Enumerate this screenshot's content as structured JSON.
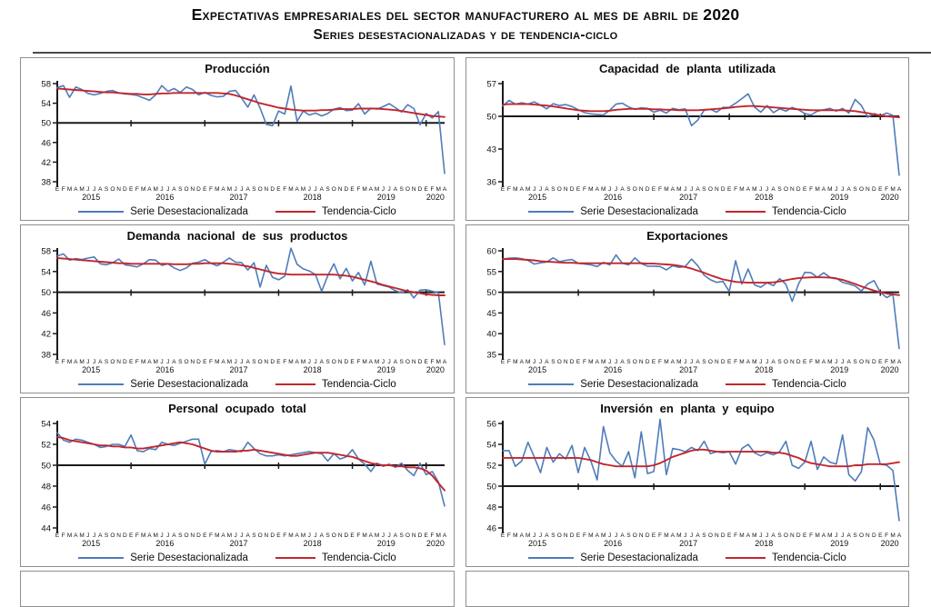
{
  "header": {
    "title_line1": "Expectativas empresariales del sector manufacturero al mes de abril de 2020",
    "title_line2": "Series desestacionalizadas y de tendencia-ciclo"
  },
  "legend": {
    "series_label": "Serie Desestacionalizada",
    "trend_label": "Tendencia-Ciclo",
    "series_color": "#4f7cba",
    "trend_color": "#c2262c",
    "axis_color": "#1a1a1a"
  },
  "x_axis": {
    "years": [
      {
        "label": "2015",
        "months": "EFMAMJJASOND"
      },
      {
        "label": "2016",
        "months": "EFMAMJJASOND"
      },
      {
        "label": "2017",
        "months": "EFMAMJJASOND"
      },
      {
        "label": "2018",
        "months": "EFMAMJJASOND"
      },
      {
        "label": "2019",
        "months": "EFMAMJJASOND"
      },
      {
        "label": "2020",
        "months": "EFMA"
      }
    ]
  },
  "chart_data": [
    {
      "type": "line",
      "title": "Producción",
      "ylim": [
        38,
        58
      ],
      "yticks": [
        38,
        42,
        46,
        50,
        54,
        58
      ],
      "baseline": 50,
      "series": [
        {
          "name": "Serie Desestacionalizada",
          "values": [
            57.2,
            57.6,
            55.2,
            57.3,
            56.8,
            56.0,
            55.7,
            56.0,
            56.4,
            56.6,
            56.1,
            55.9,
            55.8,
            55.6,
            55.1,
            54.6,
            55.7,
            57.6,
            56.4,
            57.0,
            56.2,
            57.3,
            56.8,
            55.7,
            56.2,
            55.6,
            55.3,
            55.4,
            56.4,
            56.6,
            55.0,
            53.2,
            55.7,
            53.0,
            49.7,
            49.4,
            52.4,
            51.8,
            57.5,
            50.3,
            52.4,
            51.6,
            52.0,
            51.4,
            51.9,
            52.8,
            53.1,
            52.5,
            52.6,
            53.9,
            51.8,
            53.0,
            52.8,
            53.3,
            53.9,
            53.1,
            52.2,
            53.7,
            52.9,
            49.6,
            51.9,
            51.0,
            52.3,
            39.7
          ]
        },
        {
          "name": "Tendencia-Ciclo",
          "values": [
            57.0,
            56.9,
            56.8,
            56.7,
            56.6,
            56.5,
            56.4,
            56.3,
            56.2,
            56.2,
            56.1,
            56.0,
            55.9,
            55.9,
            55.8,
            55.8,
            55.9,
            56.0,
            56.0,
            56.1,
            56.1,
            56.1,
            56.1,
            56.1,
            56.1,
            56.1,
            56.1,
            56.0,
            55.9,
            55.6,
            55.2,
            54.8,
            54.4,
            54.0,
            53.7,
            53.4,
            53.1,
            52.9,
            52.7,
            52.6,
            52.5,
            52.5,
            52.5,
            52.6,
            52.6,
            52.7,
            52.8,
            52.8,
            52.8,
            52.9,
            52.9,
            52.9,
            52.9,
            52.8,
            52.7,
            52.6,
            52.4,
            52.2,
            52.0,
            51.8,
            51.6,
            51.4,
            51.3,
            51.2
          ]
        }
      ]
    },
    {
      "type": "line",
      "title": "Capacidad de planta utilizada",
      "ylim": [
        36,
        57
      ],
      "yticks": [
        36,
        43,
        50,
        57
      ],
      "baseline": 50,
      "series": [
        {
          "name": "Serie Desestacionalizada",
          "values": [
            52.2,
            53.4,
            52.6,
            52.9,
            52.6,
            53.1,
            52.4,
            51.6,
            52.7,
            52.3,
            52.5,
            52.1,
            51.4,
            50.8,
            50.5,
            50.4,
            50.3,
            51.3,
            52.6,
            52.8,
            52.0,
            51.5,
            51.8,
            51.7,
            50.9,
            51.3,
            50.7,
            51.7,
            51.4,
            51.6,
            48.0,
            49.2,
            51.3,
            51.5,
            50.9,
            51.9,
            51.9,
            52.8,
            53.8,
            54.8,
            52.0,
            50.9,
            52.3,
            50.8,
            51.6,
            51.1,
            51.9,
            51.4,
            50.6,
            50.3,
            51.1,
            51.4,
            51.7,
            51.1,
            51.7,
            50.7,
            53.6,
            52.3,
            49.8,
            50.6,
            50.1,
            50.7,
            50.2,
            37.4
          ]
        },
        {
          "name": "Tendencia-Ciclo",
          "values": [
            52.5,
            52.6,
            52.6,
            52.6,
            52.6,
            52.5,
            52.4,
            52.3,
            52.1,
            51.9,
            51.7,
            51.5,
            51.3,
            51.2,
            51.1,
            51.1,
            51.1,
            51.2,
            51.4,
            51.5,
            51.6,
            51.6,
            51.6,
            51.6,
            51.5,
            51.5,
            51.4,
            51.4,
            51.3,
            51.3,
            51.3,
            51.3,
            51.4,
            51.5,
            51.6,
            51.7,
            51.8,
            52.0,
            52.1,
            52.2,
            52.2,
            52.1,
            52.0,
            51.9,
            51.8,
            51.7,
            51.6,
            51.5,
            51.4,
            51.3,
            51.3,
            51.3,
            51.3,
            51.3,
            51.3,
            51.2,
            51.1,
            50.9,
            50.7,
            50.4,
            50.2,
            50.0,
            49.9,
            49.8
          ]
        }
      ]
    },
    {
      "type": "line",
      "title": "Demanda nacional de sus productos",
      "ylim": [
        38,
        58
      ],
      "yticks": [
        38,
        42,
        46,
        50,
        54,
        58
      ],
      "baseline": 50,
      "series": [
        {
          "name": "Serie Desestacionalizada",
          "values": [
            57.0,
            57.4,
            56.2,
            56.5,
            56.3,
            56.6,
            56.8,
            55.5,
            55.3,
            55.7,
            56.4,
            55.3,
            55.1,
            54.9,
            55.5,
            56.3,
            56.2,
            55.2,
            55.5,
            54.7,
            54.2,
            54.7,
            55.6,
            55.8,
            56.3,
            55.6,
            55.1,
            55.8,
            56.6,
            55.8,
            55.7,
            54.3,
            55.7,
            51.0,
            55.2,
            52.9,
            52.4,
            53.1,
            58.5,
            55.4,
            54.5,
            54.1,
            53.4,
            50.2,
            53.2,
            55.5,
            52.6,
            54.6,
            52.2,
            53.8,
            51.4,
            56.0,
            51.6,
            51.3,
            51.0,
            50.3,
            49.9,
            50.5,
            48.9,
            50.4,
            50.5,
            50.2,
            49.9,
            39.9
          ]
        },
        {
          "name": "Tendencia-Ciclo",
          "values": [
            56.6,
            56.5,
            56.4,
            56.3,
            56.2,
            56.1,
            56.0,
            55.9,
            55.8,
            55.7,
            55.6,
            55.6,
            55.5,
            55.5,
            55.5,
            55.5,
            55.5,
            55.5,
            55.5,
            55.4,
            55.4,
            55.4,
            55.5,
            55.5,
            55.6,
            55.6,
            55.6,
            55.6,
            55.5,
            55.4,
            55.2,
            55.0,
            54.7,
            54.4,
            54.1,
            53.8,
            53.6,
            53.5,
            53.4,
            53.4,
            53.4,
            53.4,
            53.4,
            53.4,
            53.4,
            53.4,
            53.3,
            53.2,
            53.0,
            52.7,
            52.4,
            52.1,
            51.8,
            51.4,
            51.1,
            50.8,
            50.5,
            50.2,
            50.0,
            49.8,
            49.6,
            49.5,
            49.4,
            49.4
          ]
        }
      ]
    },
    {
      "type": "line",
      "title": "Exportaciones",
      "ylim": [
        35,
        60
      ],
      "yticks": [
        35,
        40,
        45,
        50,
        55,
        60
      ],
      "baseline": 50,
      "series": [
        {
          "name": "Serie Desestacionalizada",
          "values": [
            58.0,
            58.2,
            58.3,
            58.1,
            57.7,
            56.8,
            57.1,
            57.3,
            58.3,
            57.4,
            57.7,
            57.9,
            57.0,
            56.8,
            56.6,
            56.2,
            57.2,
            56.6,
            59.0,
            57.0,
            56.6,
            58.3,
            56.9,
            56.3,
            56.3,
            56.2,
            55.4,
            56.4,
            56.0,
            56.2,
            58.0,
            56.4,
            54.1,
            53.0,
            52.4,
            52.6,
            50.2,
            57.6,
            52.0,
            55.6,
            51.8,
            51.2,
            52.3,
            51.6,
            53.3,
            51.9,
            47.8,
            52.0,
            54.8,
            54.7,
            53.6,
            54.7,
            53.6,
            53.4,
            52.4,
            52.0,
            51.5,
            50.3,
            52.0,
            52.8,
            50.0,
            48.7,
            49.5,
            36.4
          ]
        },
        {
          "name": "Tendencia-Ciclo",
          "values": [
            58.0,
            58.0,
            58.0,
            57.9,
            57.8,
            57.7,
            57.5,
            57.4,
            57.3,
            57.2,
            57.1,
            57.1,
            57.0,
            57.0,
            57.0,
            57.0,
            57.0,
            57.0,
            57.0,
            57.0,
            57.0,
            57.0,
            57.0,
            56.9,
            56.9,
            56.8,
            56.7,
            56.6,
            56.4,
            56.1,
            55.7,
            55.2,
            54.7,
            54.1,
            53.6,
            53.1,
            52.8,
            52.5,
            52.4,
            52.3,
            52.3,
            52.3,
            52.3,
            52.4,
            52.6,
            52.9,
            53.2,
            53.4,
            53.5,
            53.6,
            53.6,
            53.6,
            53.5,
            53.3,
            53.0,
            52.5,
            52.0,
            51.4,
            50.9,
            50.4,
            50.0,
            49.7,
            49.5,
            49.3
          ]
        }
      ]
    },
    {
      "type": "line",
      "title": "Personal ocupado total",
      "ylim": [
        44,
        54
      ],
      "yticks": [
        44,
        46,
        48,
        50,
        52,
        54
      ],
      "baseline": 50,
      "series": [
        {
          "name": "Serie Desestacionalizada",
          "values": [
            53.1,
            52.4,
            52.2,
            52.5,
            52.4,
            52.2,
            52.0,
            51.7,
            51.8,
            52.0,
            52.0,
            51.8,
            52.9,
            51.4,
            51.3,
            51.6,
            51.5,
            52.2,
            52.0,
            51.9,
            52.1,
            52.3,
            52.5,
            52.5,
            50.1,
            51.3,
            51.4,
            51.3,
            51.5,
            51.4,
            51.3,
            52.2,
            51.6,
            51.1,
            50.9,
            50.9,
            51.0,
            50.9,
            51.0,
            51.1,
            51.2,
            51.3,
            51.2,
            51.1,
            50.4,
            51.1,
            50.6,
            50.8,
            51.5,
            50.6,
            50.1,
            49.4,
            50.2,
            49.9,
            50.1,
            49.8,
            50.2,
            49.5,
            49.0,
            50.2,
            49.1,
            49.4,
            48.4,
            46.1
          ]
        },
        {
          "name": "Tendencia-Ciclo",
          "values": [
            52.7,
            52.6,
            52.4,
            52.3,
            52.2,
            52.1,
            52.0,
            51.9,
            51.9,
            51.8,
            51.8,
            51.7,
            51.7,
            51.6,
            51.6,
            51.7,
            51.8,
            51.9,
            52.0,
            52.1,
            52.2,
            52.1,
            52.0,
            51.8,
            51.6,
            51.4,
            51.3,
            51.3,
            51.3,
            51.3,
            51.4,
            51.4,
            51.5,
            51.4,
            51.3,
            51.2,
            51.1,
            51.0,
            50.9,
            50.9,
            51.0,
            51.1,
            51.2,
            51.2,
            51.2,
            51.1,
            51.0,
            50.9,
            50.8,
            50.6,
            50.4,
            50.2,
            50.1,
            50.0,
            50.0,
            49.9,
            49.9,
            49.8,
            49.8,
            49.7,
            49.5,
            49.0,
            48.3,
            47.6
          ]
        }
      ]
    },
    {
      "type": "line",
      "title": "Inversión en planta y equipo",
      "ylim": [
        46,
        56
      ],
      "yticks": [
        46,
        48,
        50,
        52,
        54,
        56
      ],
      "baseline": 50,
      "series": [
        {
          "name": "Serie Desestacionalizada",
          "values": [
            53.4,
            53.4,
            51.9,
            52.4,
            54.2,
            52.8,
            51.3,
            53.7,
            52.3,
            53.1,
            52.6,
            53.9,
            51.3,
            53.7,
            52.4,
            50.6,
            55.7,
            53.2,
            52.4,
            51.9,
            53.3,
            50.8,
            55.2,
            51.2,
            51.4,
            56.4,
            51.1,
            53.6,
            53.5,
            53.3,
            53.7,
            53.4,
            54.3,
            53.1,
            53.3,
            53.2,
            53.3,
            52.1,
            53.6,
            54.0,
            53.2,
            52.9,
            53.2,
            53.0,
            53.3,
            54.3,
            52.0,
            51.7,
            52.3,
            54.3,
            51.6,
            52.8,
            52.3,
            52.1,
            54.9,
            51.1,
            50.5,
            51.4,
            55.6,
            54.4,
            52.1,
            52.0,
            51.5,
            46.7
          ]
        },
        {
          "name": "Tendencia-Ciclo",
          "values": [
            52.7,
            52.7,
            52.7,
            52.7,
            52.7,
            52.7,
            52.7,
            52.7,
            52.7,
            52.7,
            52.7,
            52.7,
            52.7,
            52.6,
            52.5,
            52.3,
            52.1,
            52.0,
            51.9,
            51.9,
            51.9,
            51.9,
            51.9,
            51.9,
            52.0,
            52.2,
            52.5,
            52.8,
            53.0,
            53.2,
            53.4,
            53.5,
            53.5,
            53.4,
            53.3,
            53.3,
            53.3,
            53.3,
            53.3,
            53.3,
            53.3,
            53.3,
            53.3,
            53.2,
            53.2,
            53.1,
            52.9,
            52.7,
            52.4,
            52.2,
            52.1,
            52.0,
            51.9,
            51.9,
            51.9,
            51.9,
            52.0,
            52.0,
            52.1,
            52.1,
            52.1,
            52.1,
            52.2,
            52.3
          ]
        }
      ]
    }
  ]
}
